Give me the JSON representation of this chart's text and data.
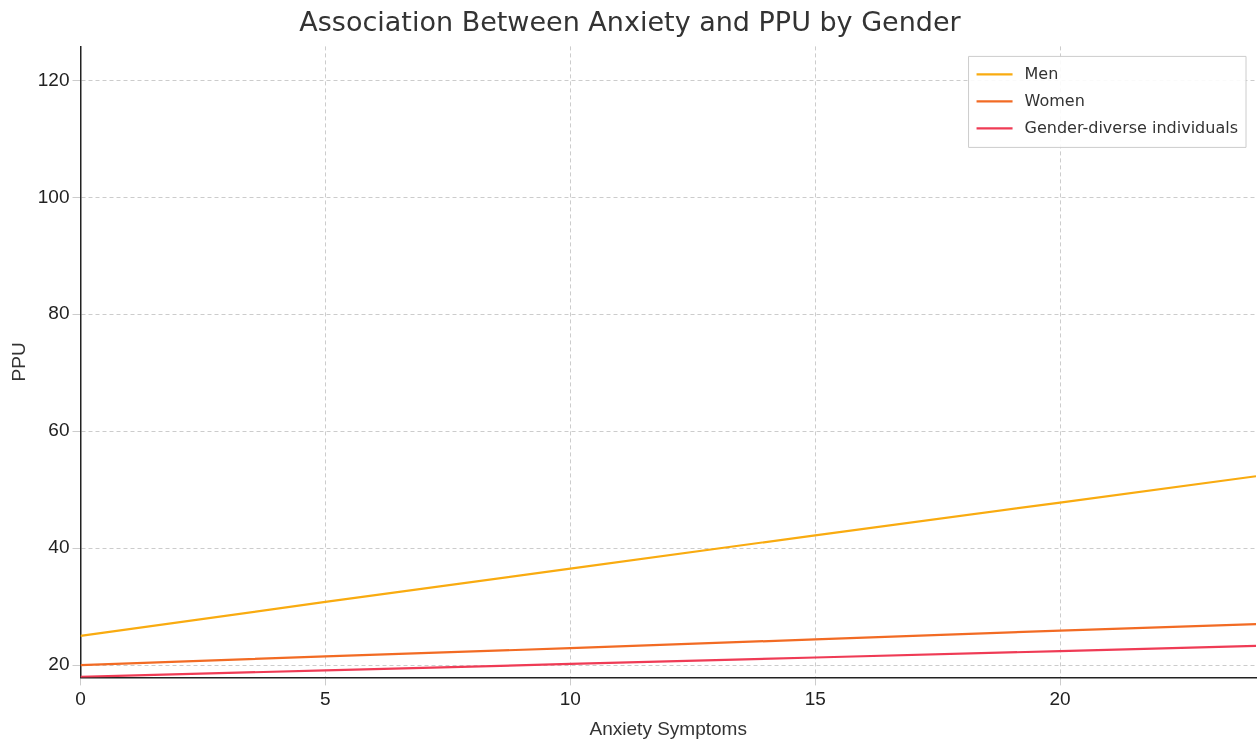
{
  "chart_data": {
    "type": "line",
    "title": "Association Between Anxiety and PPU by Gender",
    "xlabel": "Anxiety Symptoms",
    "ylabel": "PPU",
    "x": [
      0,
      5,
      10,
      15,
      20,
      24
    ],
    "series": [
      {
        "name": "Men",
        "color": "#f9ab10",
        "values": [
          25,
          30.8,
          36.5,
          42.2,
          47.8,
          52.3
        ]
      },
      {
        "name": "Women",
        "color": "#f26b24",
        "values": [
          20,
          21.5,
          22.9,
          24.4,
          25.9,
          27
        ]
      },
      {
        "name": "Gender-diverse individuals",
        "color": "#ef3b55",
        "values": [
          18,
          19.1,
          20.2,
          21.3,
          22.4,
          23.3
        ]
      }
    ],
    "xlim": [
      0,
      24
    ],
    "ylim": [
      17.9,
      125.8
    ],
    "xticks": [
      0,
      5,
      10,
      15,
      20
    ],
    "yticks": [
      20,
      40,
      60,
      80,
      100,
      120
    ],
    "grid": true,
    "legend": "top right",
    "marker": "none",
    "line_style": "solid"
  }
}
